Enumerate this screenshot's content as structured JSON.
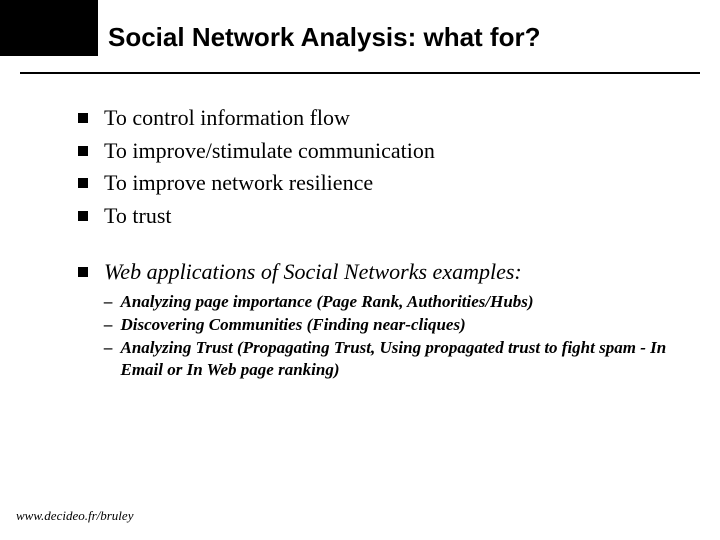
{
  "slide": {
    "title": "Social Network Analysis: what for?",
    "bullets": {
      "b0": "To control information flow",
      "b1": "To improve/stimulate communication",
      "b2": "To improve network resilience",
      "b3": "To trust",
      "b4": "Web applications of Social Networks examples:"
    },
    "subs": {
      "s0": "Analyzing page importance (Page Rank, Authorities/Hubs)",
      "s1": "Discovering Communities (Finding near-cliques)",
      "s2": "Analyzing Trust (Propagating Trust, Using propagated trust to fight spam - In Email or In Web page ranking)"
    },
    "dash": "–",
    "footer": "www.decideo.fr/bruley"
  },
  "style": {
    "header_box_color": "#000000",
    "bullet_color": "#000000",
    "title_fontsize": 26,
    "bullet_fontsize": 22,
    "sub_fontsize": 17,
    "footer_fontsize": 13,
    "background_color": "#ffffff"
  }
}
